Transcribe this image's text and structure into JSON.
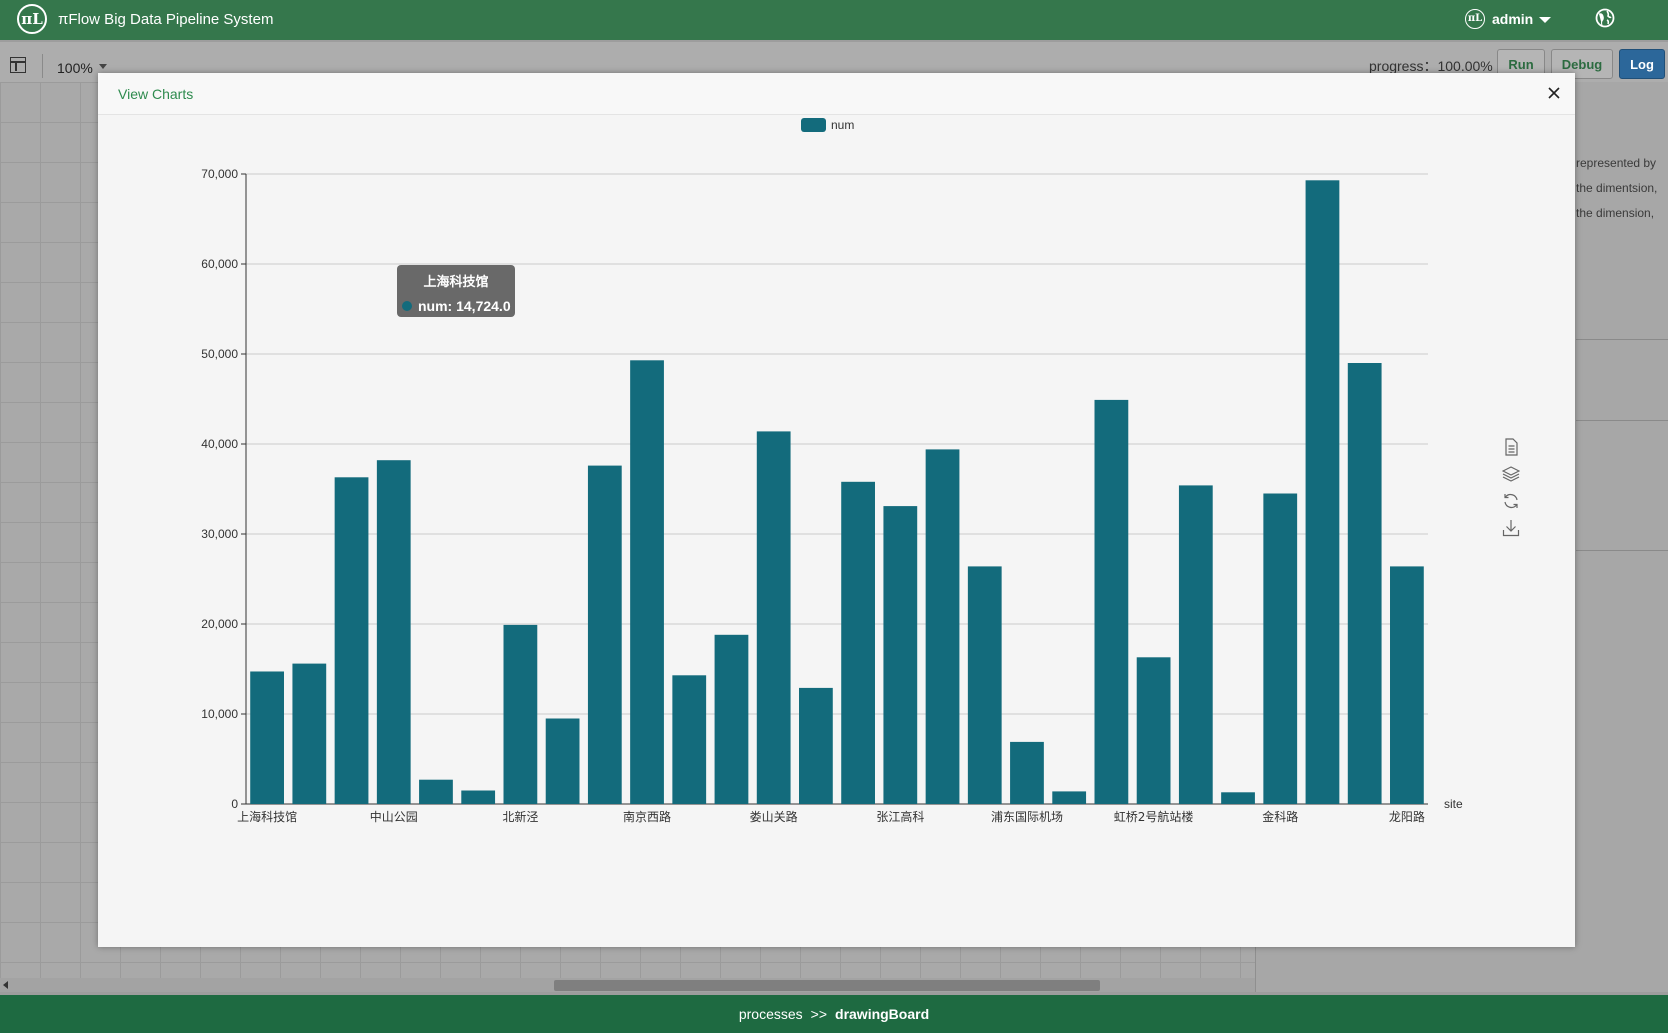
{
  "header": {
    "logo_text": "πL",
    "app_title": "πFlow Big Data Pipeline System",
    "user_icon_text": "πL",
    "user_name": "admin"
  },
  "toolbar": {
    "zoom": "100%",
    "progress": "progress：100.00%",
    "run_label": "Run",
    "debug_label": "Debug",
    "log_label": "Log"
  },
  "right_panel": {
    "lines": [
      "represented by",
      "the dimentsion,",
      "the dimension,"
    ]
  },
  "breadcrumb": {
    "root": "processes",
    "separator": ">>",
    "current": "drawingBoard"
  },
  "modal": {
    "title": "View Charts"
  },
  "chart_data": {
    "type": "bar",
    "legend": [
      "num"
    ],
    "legend_placement": "top-center",
    "xlabel": "site",
    "ylabel": "",
    "ylim": [
      0,
      70000
    ],
    "y_ticks": [
      "0",
      "10,000",
      "20,000",
      "30,000",
      "40,000",
      "50,000",
      "60,000",
      "70,000"
    ],
    "grid": true,
    "color": "#136b7c",
    "categories": [
      "上海科技馆",
      "",
      "",
      "中山公园",
      "",
      "",
      "北新泾",
      "",
      "",
      "南京西路",
      "",
      "",
      "娄山关路",
      "",
      "",
      "张江高科",
      "",
      "",
      "浦东国际机场",
      "",
      "",
      "虹桥2号航站楼",
      "",
      "",
      "金科路",
      "",
      "",
      "龙阳路"
    ],
    "series": [
      {
        "name": "num",
        "values": [
          14724,
          15600,
          36300,
          38200,
          2700,
          1500,
          19900,
          9500,
          37600,
          49300,
          14300,
          18800,
          41400,
          12900,
          35800,
          33100,
          39400,
          26400,
          6900,
          1400,
          44900,
          16300,
          35400,
          1300,
          34500,
          69300,
          49000,
          26400
        ]
      }
    ],
    "tooltip": {
      "title": "上海科技馆",
      "text": "num: 14,724.0"
    }
  },
  "colors": {
    "topbar": "#35774c",
    "bottombar": "#1e6a41",
    "bar": "#136b7c",
    "log_button": "#2c679a",
    "modal_title": "#2e8b4e"
  }
}
